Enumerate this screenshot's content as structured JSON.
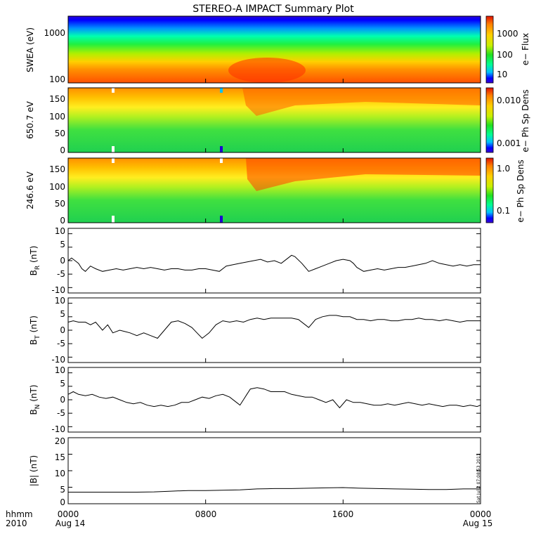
{
  "title": "STEREO-A IMPACT Summary Plot",
  "x_axis": {
    "ticks": [
      "0000",
      "0800",
      "1600",
      "0000"
    ],
    "sublabels": [
      "Aug 14",
      "",
      "",
      "Aug 15"
    ],
    "left_label_top": "hhmm",
    "left_label_bottom": "2010"
  },
  "timestamp": "Sat Jul  2 07:08:53 2011",
  "colors": {
    "line": "#000000",
    "colormap": [
      "#3a00d0",
      "#0000ff",
      "#00c0ff",
      "#00ff90",
      "#20e020",
      "#c8f000",
      "#ffd000",
      "#ff8000",
      "#e01000"
    ]
  },
  "chart_data": [
    {
      "type": "heatmap",
      "ylabel": "SWEA (eV)",
      "y_scale": "log",
      "yticks": [
        "1000",
        "100"
      ],
      "colorbar": {
        "label": "e− Flux",
        "scale": "log",
        "ticks": [
          "1000",
          "100",
          "10"
        ]
      }
    },
    {
      "type": "heatmap",
      "ylabel": "650.7 eV",
      "yticks": [
        "150",
        "100",
        "50",
        "0"
      ],
      "ylim": [
        0,
        180
      ],
      "colorbar": {
        "label": "e− Ph Sp Dens",
        "scale": "log",
        "ticks": [
          "0.010",
          "0.001"
        ]
      }
    },
    {
      "type": "heatmap",
      "ylabel": "246.6 eV",
      "yticks": [
        "150",
        "100",
        "50",
        "0"
      ],
      "ylim": [
        0,
        180
      ],
      "colorbar": {
        "label": "e− Ph Sp Dens",
        "scale": "log",
        "ticks": [
          "1.0",
          "0.1"
        ]
      }
    },
    {
      "type": "line",
      "ylabel": "B",
      "ylabel_sub": "R",
      "ylabel_unit": "(nT)",
      "ylim": [
        -12,
        12
      ],
      "yticks": [
        10,
        5,
        0,
        -5,
        -10
      ],
      "xlim": [
        0,
        24
      ],
      "x": [
        0,
        0.2,
        0.4,
        0.6,
        0.8,
        1.0,
        1.3,
        1.6,
        2.0,
        2.4,
        2.8,
        3.2,
        3.6,
        4.0,
        4.4,
        4.8,
        5.2,
        5.6,
        6.0,
        6.4,
        6.8,
        7.2,
        7.6,
        8.0,
        8.4,
        8.8,
        9.2,
        9.6,
        10.0,
        10.4,
        10.8,
        11.2,
        11.6,
        12.0,
        12.4,
        12.8,
        13.0,
        13.2,
        13.6,
        14.0,
        14.4,
        14.8,
        15.2,
        15.6,
        16.0,
        16.4,
        16.6,
        16.8,
        17.2,
        17.6,
        18.0,
        18.4,
        18.8,
        19.2,
        19.6,
        20.0,
        20.4,
        20.8,
        21.2,
        21.6,
        22.0,
        22.4,
        22.8,
        23.2,
        23.6,
        24.0
      ],
      "y": [
        0,
        1,
        0,
        -1,
        -3,
        -4,
        -2,
        -3,
        -4,
        -3.5,
        -3,
        -3.5,
        -3,
        -2.5,
        -3,
        -2.5,
        -3,
        -3.5,
        -3,
        -3,
        -3.5,
        -3.5,
        -3,
        -3,
        -3.5,
        -4,
        -2,
        -1.5,
        -1,
        -0.5,
        0,
        0.5,
        -0.5,
        0,
        -1,
        1,
        2,
        1.5,
        -1,
        -4,
        -3,
        -2,
        -1,
        0,
        0.5,
        0,
        -1,
        -2.5,
        -4,
        -3.5,
        -3,
        -3.5,
        -3,
        -2.5,
        -2.5,
        -2,
        -1.5,
        -1,
        0,
        -1,
        -1.5,
        -2,
        -1.5,
        -2,
        -1.5,
        -1.5
      ]
    },
    {
      "type": "line",
      "ylabel": "B",
      "ylabel_sub": "T",
      "ylabel_unit": "(nT)",
      "ylim": [
        -12,
        12
      ],
      "yticks": [
        10,
        5,
        0,
        -5,
        -10
      ],
      "xlim": [
        0,
        24
      ],
      "x": [
        0,
        0.3,
        0.6,
        1.0,
        1.3,
        1.6,
        2.0,
        2.3,
        2.6,
        3.0,
        3.3,
        3.6,
        4.0,
        4.4,
        4.8,
        5.2,
        5.6,
        6.0,
        6.4,
        6.8,
        7.2,
        7.5,
        7.8,
        8.2,
        8.6,
        9.0,
        9.4,
        9.8,
        10.2,
        10.6,
        11.0,
        11.4,
        11.8,
        12.2,
        12.6,
        13.0,
        13.4,
        13.8,
        14.0,
        14.4,
        14.8,
        15.2,
        15.6,
        16.0,
        16.4,
        16.8,
        17.2,
        17.6,
        18.0,
        18.4,
        18.8,
        19.2,
        19.6,
        20.0,
        20.4,
        20.8,
        21.2,
        21.6,
        22.0,
        22.4,
        22.8,
        23.2,
        23.6,
        24.0
      ],
      "y": [
        3,
        3.5,
        3,
        3,
        2,
        3,
        0,
        2,
        -1,
        0,
        -0.5,
        -1,
        -2,
        -1,
        -2,
        -3,
        0,
        3,
        3.5,
        2.5,
        1,
        -1,
        -3,
        -1,
        2,
        3.5,
        3,
        3.5,
        3,
        4,
        4.5,
        4,
        4.5,
        4.5,
        4.5,
        4.5,
        4,
        2,
        1,
        4,
        5,
        5.5,
        5.5,
        5,
        5,
        4,
        4,
        3.5,
        4,
        4,
        3.5,
        3.5,
        4,
        4,
        4.5,
        4,
        4,
        3.5,
        4,
        3.5,
        3,
        3.5,
        3.5,
        3.5
      ]
    },
    {
      "type": "line",
      "ylabel": "B",
      "ylabel_sub": "N",
      "ylabel_unit": "(nT)",
      "ylim": [
        -12,
        12
      ],
      "yticks": [
        10,
        5,
        0,
        -5,
        -10
      ],
      "xlim": [
        0,
        24
      ],
      "x": [
        0,
        0.3,
        0.6,
        1.0,
        1.4,
        1.8,
        2.2,
        2.6,
        3.0,
        3.4,
        3.8,
        4.2,
        4.6,
        5.0,
        5.4,
        5.8,
        6.2,
        6.6,
        7.0,
        7.4,
        7.8,
        8.2,
        8.6,
        9.0,
        9.4,
        9.8,
        10.0,
        10.2,
        10.4,
        10.6,
        11.0,
        11.4,
        11.8,
        12.2,
        12.6,
        13.0,
        13.4,
        13.8,
        14.2,
        14.6,
        15.0,
        15.4,
        15.8,
        16.2,
        16.6,
        17.0,
        17.4,
        17.8,
        18.2,
        18.6,
        19.0,
        19.4,
        19.8,
        20.2,
        20.6,
        21.0,
        21.4,
        21.8,
        22.2,
        22.6,
        23.0,
        23.4,
        23.8,
        24.0
      ],
      "y": [
        2,
        3,
        2,
        1.5,
        2,
        1,
        0.5,
        1,
        0,
        -1,
        -1.5,
        -1,
        -2,
        -2.5,
        -2,
        -2.5,
        -2,
        -1,
        -1,
        0,
        1,
        0.5,
        1.5,
        2,
        1,
        -1,
        -2,
        0,
        2,
        4,
        4.5,
        4,
        3,
        3,
        3,
        2,
        1.5,
        1,
        1,
        0,
        -1,
        0,
        -3,
        0,
        -1,
        -1,
        -1.5,
        -2,
        -2,
        -1.5,
        -2,
        -1.5,
        -1,
        -1.5,
        -2,
        -1.5,
        -2,
        -2.5,
        -2,
        -2,
        -2.5,
        -2,
        -2.5,
        -2
      ]
    },
    {
      "type": "line",
      "ylabel": "|B| (nT)",
      "ylim": [
        0,
        20
      ],
      "yticks": [
        20,
        15,
        10,
        5,
        0
      ],
      "xlim": [
        0,
        24
      ],
      "x": [
        0,
        1,
        2,
        3,
        4,
        5,
        6,
        7,
        8,
        9,
        10,
        11,
        12,
        13,
        14,
        15,
        16,
        17,
        18,
        19,
        20,
        21,
        22,
        23,
        24
      ],
      "y": [
        3.5,
        3.5,
        3.5,
        3.5,
        3.5,
        3.6,
        3.8,
        4.0,
        4.0,
        4.1,
        4.2,
        4.5,
        4.6,
        4.6,
        4.7,
        4.8,
        4.9,
        4.7,
        4.6,
        4.5,
        4.4,
        4.3,
        4.3,
        4.5,
        4.5
      ]
    }
  ]
}
